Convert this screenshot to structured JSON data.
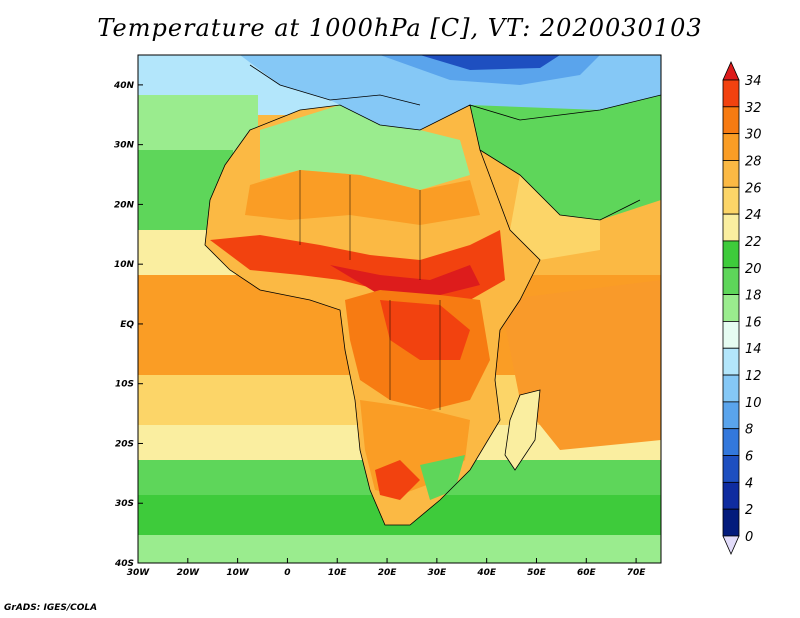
{
  "title": "Temperature at 1000hPa [C], VT: 2020030103",
  "footer": "GrADS: IGES/COLA",
  "map": {
    "lon_range": [
      -30,
      75
    ],
    "lat_range": [
      -40,
      45
    ],
    "x_ticks": [
      "30W",
      "20W",
      "10W",
      "0",
      "10E",
      "20E",
      "30E",
      "40E",
      "50E",
      "60E",
      "70E"
    ],
    "y_ticks": [
      "40N",
      "30N",
      "20N",
      "10N",
      "EQ",
      "10S",
      "20S",
      "30S",
      "40S"
    ]
  },
  "colorbar": {
    "labels": [
      "34",
      "32",
      "30",
      "28",
      "26",
      "24",
      "22",
      "20",
      "18",
      "16",
      "14",
      "12",
      "10",
      "8",
      "6",
      "4",
      "2",
      "0"
    ],
    "colors": [
      "#dd1c1c",
      "#f2420f",
      "#f77b12",
      "#fa9d25",
      "#fbb944",
      "#fcd568",
      "#faeea0",
      "#3ecb3b",
      "#5ed65a",
      "#9aec8e",
      "#e6fcf2",
      "#b3e6fb",
      "#85c8f6",
      "#5aa4ec",
      "#3378dc",
      "#1e4fc0",
      "#0f2ca0",
      "#031b7c",
      "#e2dcfa"
    ]
  },
  "colors": {
    "ocean_warm": "#f9a63a",
    "ocean_mild": "#fcd568",
    "ocean_cool": "#5ed65a",
    "land_hot": "#e8331a",
    "land_warm": "#f77b12",
    "med_cool": "#85c8f6"
  }
}
